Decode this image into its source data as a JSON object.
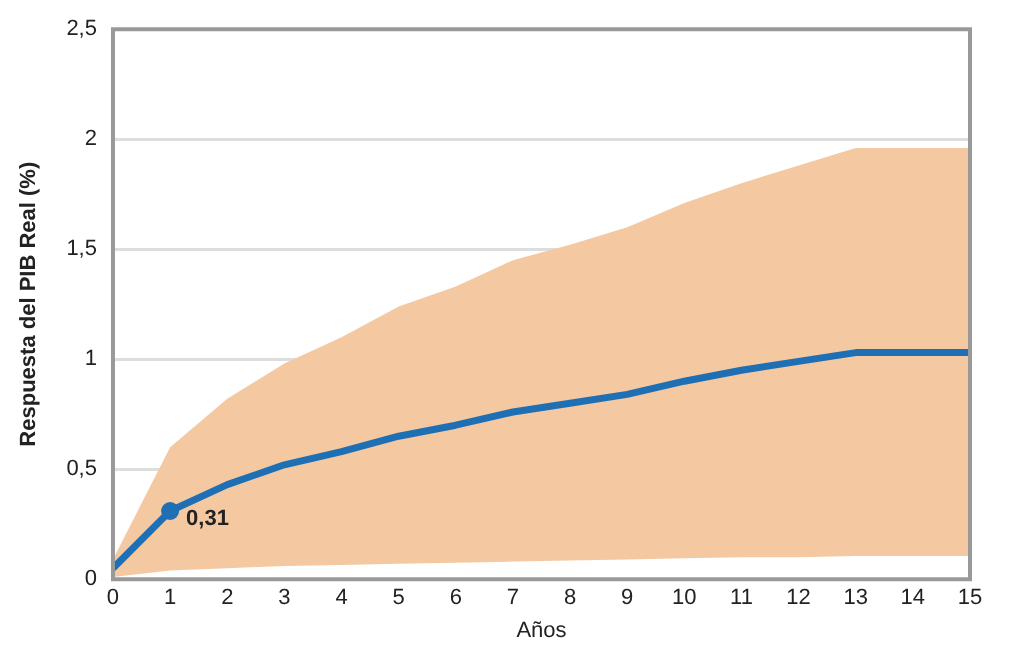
{
  "chart_data": {
    "type": "line",
    "xlabel": "Años",
    "ylabel": "Respuesta del PIB Real (%)",
    "x": [
      0,
      1,
      2,
      3,
      4,
      5,
      6,
      7,
      8,
      9,
      10,
      11,
      12,
      13,
      14,
      15
    ],
    "series": [
      {
        "color": "#1f6fb5",
        "values": [
          0.05,
          0.31,
          0.43,
          0.52,
          0.58,
          0.65,
          0.7,
          0.76,
          0.8,
          0.84,
          0.9,
          0.95,
          0.99,
          1.03,
          1.03,
          1.03
        ],
        "lower": [
          0.01,
          0.04,
          0.05,
          0.06,
          0.065,
          0.07,
          0.075,
          0.08,
          0.085,
          0.09,
          0.095,
          0.1,
          0.1,
          0.105,
          0.105,
          0.105
        ],
        "upper": [
          0.09,
          0.6,
          0.82,
          0.98,
          1.1,
          1.24,
          1.33,
          1.45,
          1.52,
          1.6,
          1.71,
          1.8,
          1.88,
          1.96,
          1.96,
          1.96
        ]
      }
    ],
    "xlim": [
      0,
      15
    ],
    "xticks": [
      0,
      1,
      2,
      3,
      4,
      5,
      6,
      7,
      8,
      9,
      10,
      11,
      12,
      13,
      14,
      15
    ],
    "ylim": [
      0,
      2.5
    ],
    "yticks": [
      {
        "value": 0,
        "label": "0"
      },
      {
        "value": 0.5,
        "label": "0,5"
      },
      {
        "value": 1,
        "label": "1"
      },
      {
        "value": 1.5,
        "label": "1,5"
      },
      {
        "value": 2,
        "label": "2"
      },
      {
        "value": 2.5,
        "label": "2,5"
      }
    ],
    "grid": "y",
    "legend": false,
    "marker": "none",
    "line_style": "solid",
    "annotations": [
      {
        "text": "0,31",
        "x": 1,
        "y": 0.31
      }
    ]
  }
}
